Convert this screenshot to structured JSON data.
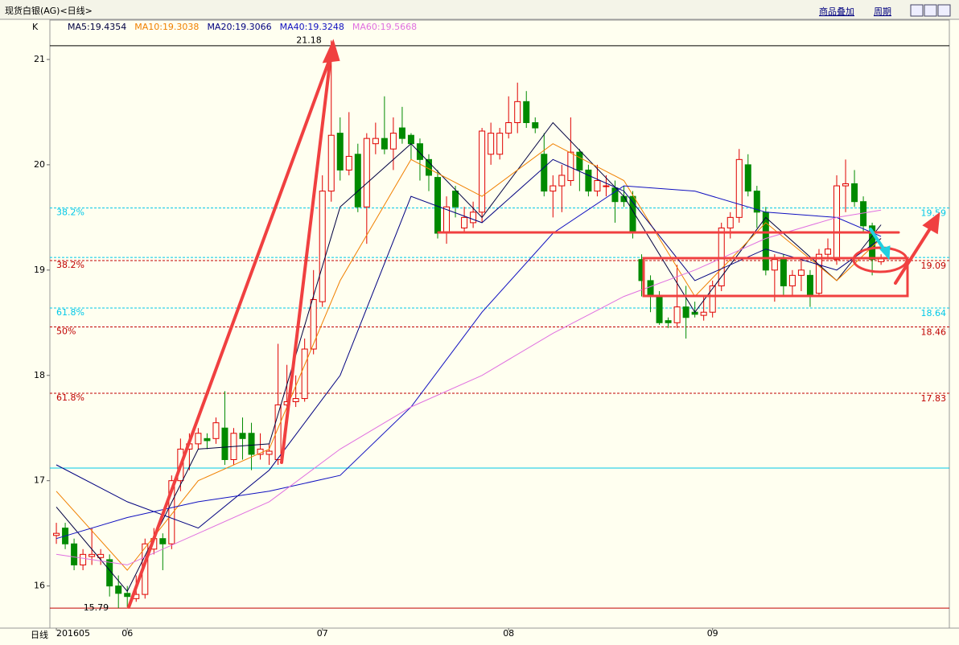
{
  "toolbar": [
    "商品叠加",
    "周期"
  ],
  "chart_data": {
    "type": "candlestick",
    "title": "现货白银(AG)<日线>",
    "legend_prefix": "K",
    "x_axis_label": "日线",
    "up_color": "#e00000",
    "down_color": "#008a00",
    "open": [
      16.48,
      16.55,
      16.4,
      16.2,
      16.28,
      16.27,
      16.25,
      16.0,
      15.93,
      15.88,
      15.92,
      16.35,
      16.45,
      16.4,
      17.0,
      17.3,
      17.35,
      17.4,
      17.4,
      17.5,
      17.2,
      17.45,
      17.45,
      17.25,
      17.25,
      17.2,
      17.72,
      17.75,
      17.78,
      18.25,
      18.7,
      19.75,
      20.3,
      19.95,
      20.1,
      19.6,
      20.2,
      20.25,
      20.15,
      20.35,
      20.28,
      20.2,
      20.05,
      19.88,
      19.35,
      19.75,
      19.4,
      19.45,
      19.55,
      20.1,
      20.1,
      20.3,
      20.4,
      20.6,
      20.4,
      20.1,
      19.75,
      19.8,
      19.85,
      20.12,
      19.95,
      19.75,
      19.8,
      19.78,
      19.7,
      19.7,
      19.1,
      18.9,
      18.75,
      18.52,
      18.5,
      18.65,
      18.6,
      18.57,
      18.6,
      18.85,
      19.4,
      19.5,
      20.0,
      19.75,
      19.55,
      19.0,
      19.1,
      18.85,
      18.95,
      18.95,
      18.78,
      19.15,
      19.1,
      19.8,
      19.82,
      19.65,
      19.42,
      19.08
    ],
    "close": [
      16.5,
      16.4,
      16.2,
      16.3,
      16.3,
      16.3,
      16.0,
      15.93,
      15.9,
      15.92,
      16.4,
      16.45,
      16.4,
      17.0,
      17.3,
      17.35,
      17.45,
      17.38,
      17.55,
      17.2,
      17.45,
      17.4,
      17.25,
      17.3,
      17.28,
      17.72,
      17.75,
      17.78,
      18.25,
      18.72,
      19.75,
      20.28,
      19.95,
      20.08,
      19.6,
      20.25,
      20.25,
      20.15,
      20.3,
      20.25,
      20.2,
      20.05,
      19.9,
      19.35,
      19.6,
      19.6,
      19.5,
      19.55,
      20.32,
      20.3,
      20.3,
      20.4,
      20.6,
      20.4,
      20.35,
      19.75,
      19.8,
      19.9,
      20.12,
      19.95,
      19.75,
      19.85,
      19.8,
      19.65,
      19.65,
      19.35,
      18.9,
      18.75,
      18.5,
      18.5,
      18.65,
      18.55,
      18.58,
      18.6,
      18.85,
      19.4,
      19.5,
      20.05,
      19.75,
      19.55,
      19.0,
      19.1,
      18.85,
      18.95,
      19.0,
      18.75,
      19.15,
      19.2,
      19.8,
      19.82,
      19.65,
      19.42,
      19.1,
      19.12
    ],
    "high": [
      16.6,
      16.6,
      16.45,
      16.35,
      16.55,
      16.35,
      16.3,
      16.1,
      16.0,
      16.1,
      16.45,
      16.55,
      16.5,
      17.05,
      17.4,
      17.45,
      17.5,
      17.45,
      17.6,
      17.85,
      17.5,
      17.6,
      17.55,
      17.45,
      17.35,
      18.3,
      18.1,
      18.0,
      18.35,
      19.0,
      19.9,
      21.18,
      20.45,
      20.5,
      20.2,
      20.3,
      20.4,
      20.65,
      20.45,
      20.55,
      20.3,
      20.25,
      20.1,
      19.95,
      19.7,
      19.8,
      19.6,
      19.65,
      20.35,
      20.4,
      20.35,
      20.65,
      20.78,
      20.7,
      20.45,
      20.3,
      19.9,
      20.0,
      20.45,
      20.15,
      20.0,
      20.0,
      19.9,
      19.85,
      19.8,
      19.75,
      19.15,
      18.95,
      18.8,
      18.55,
      19.05,
      18.85,
      18.7,
      18.75,
      18.9,
      19.45,
      19.55,
      20.15,
      20.1,
      19.8,
      19.6,
      19.15,
      19.15,
      19.0,
      19.1,
      19.0,
      19.2,
      19.3,
      19.9,
      20.05,
      19.95,
      19.7,
      19.45,
      19.15
    ],
    "low": [
      16.4,
      16.35,
      16.15,
      16.15,
      16.2,
      16.2,
      15.9,
      15.79,
      15.8,
      15.85,
      15.88,
      16.3,
      16.15,
      16.35,
      16.9,
      17.1,
      17.3,
      17.3,
      17.35,
      17.15,
      17.15,
      17.2,
      17.1,
      17.2,
      17.15,
      17.15,
      17.68,
      17.7,
      17.75,
      18.2,
      18.65,
      19.65,
      19.85,
      19.9,
      19.55,
      19.25,
      20.1,
      20.1,
      19.95,
      20.2,
      20.05,
      19.85,
      19.75,
      19.3,
      19.25,
      19.5,
      19.35,
      19.4,
      19.45,
      20.0,
      20.05,
      20.25,
      20.3,
      20.35,
      20.3,
      19.7,
      19.5,
      19.55,
      19.8,
      19.75,
      19.7,
      19.7,
      19.7,
      19.45,
      19.6,
      19.3,
      18.75,
      18.6,
      18.48,
      18.45,
      18.45,
      18.35,
      18.55,
      18.52,
      18.55,
      18.8,
      19.3,
      19.45,
      19.7,
      19.4,
      18.95,
      18.7,
      18.75,
      18.75,
      18.8,
      18.65,
      18.75,
      19.1,
      19.05,
      19.55,
      19.6,
      19.35,
      18.95,
      19.05
    ],
    "series": [
      {
        "name": "MA5:19.4354",
        "color": "#000040",
        "x": [
          0,
          8,
          16,
          24,
          32,
          40,
          48,
          56,
          64,
          72,
          80,
          88,
          93
        ],
        "values": [
          16.75,
          15.95,
          17.3,
          17.35,
          19.6,
          20.2,
          19.5,
          20.4,
          19.7,
          18.6,
          19.5,
          18.9,
          19.43
        ]
      },
      {
        "name": "MA10:19.3038",
        "color": "#f08000",
        "x": [
          0,
          8,
          16,
          24,
          32,
          40,
          48,
          56,
          64,
          72,
          80,
          88,
          93
        ],
        "values": [
          16.9,
          16.15,
          17.0,
          17.3,
          18.9,
          20.05,
          19.7,
          20.2,
          19.85,
          18.75,
          19.45,
          18.9,
          19.3
        ]
      },
      {
        "name": "MA20:19.3066",
        "color": "#000080",
        "x": [
          0,
          8,
          16,
          24,
          32,
          40,
          48,
          56,
          64,
          72,
          80,
          88,
          93
        ],
        "values": [
          17.15,
          16.8,
          16.55,
          17.1,
          18.0,
          19.7,
          19.45,
          20.05,
          19.75,
          18.9,
          19.2,
          19.0,
          19.3
        ]
      },
      {
        "name": "MA40:19.3248",
        "color": "#1010c0",
        "x": [
          0,
          8,
          16,
          24,
          32,
          40,
          48,
          56,
          64,
          72,
          80,
          88,
          93
        ],
        "values": [
          16.45,
          16.65,
          16.8,
          16.9,
          17.05,
          17.7,
          18.6,
          19.35,
          19.8,
          19.75,
          19.55,
          19.5,
          19.32
        ]
      },
      {
        "name": "MA60:19.5668",
        "color": "#e070e0",
        "x": [
          0,
          8,
          16,
          24,
          32,
          40,
          48,
          56,
          64,
          72,
          80,
          88,
          93
        ],
        "values": [
          16.3,
          16.2,
          16.5,
          16.8,
          17.3,
          17.7,
          18.0,
          18.4,
          18.75,
          19.0,
          19.3,
          19.5,
          19.57
        ]
      }
    ],
    "levels": [
      {
        "value": 19.59,
        "label": "38.2%",
        "color": "#00c8e8"
      },
      {
        "value": 19.09,
        "label": "38.2%",
        "color": "#c00000"
      },
      {
        "value": 18.64,
        "label": "61.8%",
        "color": "#00c8e8"
      },
      {
        "value": 18.46,
        "label": "50%",
        "color": "#c00000"
      },
      {
        "value": 17.83,
        "label": "61.8%",
        "color": "#c00000"
      }
    ],
    "hlines": [
      {
        "value": 21.13,
        "color": "#000000",
        "dashed": false
      },
      {
        "value": 19.12,
        "color": "#00c8e8",
        "dashed": true
      },
      {
        "value": 17.12,
        "color": "#00c8e8",
        "dashed": false
      },
      {
        "value": 15.79,
        "color": "#c00000",
        "dashed": false
      }
    ],
    "xlim": [
      -0.73,
      100.7
    ],
    "xticks": [
      {
        "value": 0,
        "label": "201605"
      },
      {
        "value": 8,
        "label": "06"
      },
      {
        "value": 30,
        "label": "07"
      },
      {
        "value": 51,
        "label": "08"
      },
      {
        "value": 74,
        "label": "09"
      }
    ],
    "ylim": [
      15.6,
      21.37
    ],
    "yticks": [
      16,
      17,
      18,
      19,
      20,
      21
    ]
  }
}
